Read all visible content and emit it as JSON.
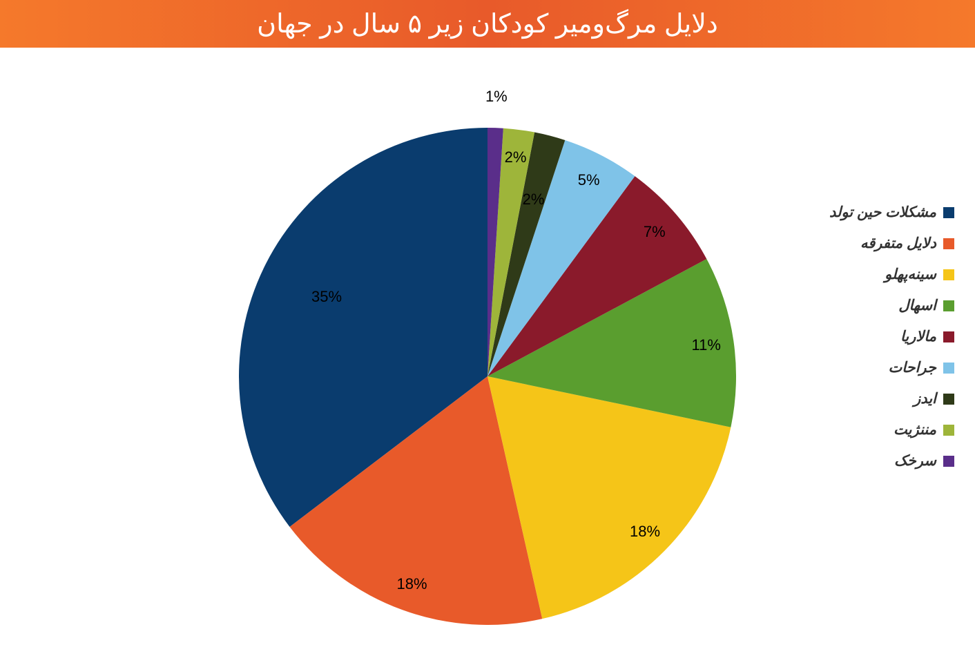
{
  "header": {
    "title": "دلایل مرگ‌ومیر کودکان زیر ۵ سال در جهان",
    "background_color": "#f5792b",
    "text_color": "#ffffff",
    "fontsize": 38
  },
  "chart": {
    "type": "pie",
    "radius": 360,
    "label_offset": 320,
    "label_fontsize": 22,
    "start_angle": -90,
    "direction": "ccw",
    "background_color": "#ffffff",
    "slices": [
      {
        "label": "مشکلات حین تولد",
        "value": 35,
        "display": "35%",
        "color": "#0a3c6e",
        "label_offset": 260
      },
      {
        "label": "دلایل متفرقه",
        "value": 18,
        "display": "18%",
        "color": "#e85a2a"
      },
      {
        "label": "سینه‌پهلو",
        "value": 18,
        "display": "18%",
        "color": "#f5c518"
      },
      {
        "label": "اسهال",
        "value": 11,
        "display": "11%",
        "color": "#5a9e2f"
      },
      {
        "label": "مالاریا",
        "value": 7,
        "display": "7%",
        "color": "#8a1a2b"
      },
      {
        "label": "جراحات",
        "value": 5,
        "display": "5%",
        "color": "#7fc3e8"
      },
      {
        "label": "ایدز",
        "value": 2,
        "display": "2%",
        "color": "#2f3a18",
        "label_offset": 265
      },
      {
        "label": "مننژیت",
        "value": 2,
        "display": "2%",
        "color": "#9eb53a"
      },
      {
        "label": "سرخک",
        "value": 1,
        "display": "1%",
        "color": "#5a2e8a",
        "label_offset": 405
      }
    ],
    "legend": {
      "position": "right",
      "fontsize": 21,
      "font_style": "italic",
      "font_weight": "bold",
      "text_color": "#333333",
      "swatch_size": 16,
      "row_gap": 20
    }
  }
}
